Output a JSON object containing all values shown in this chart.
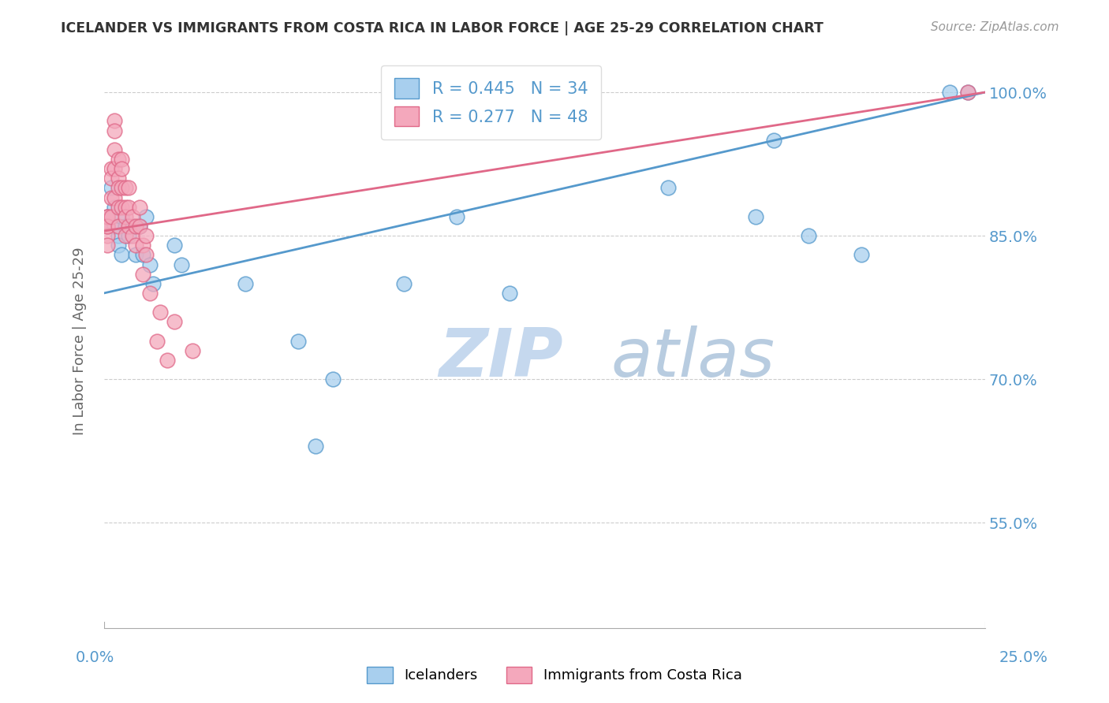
{
  "title": "ICELANDER VS IMMIGRANTS FROM COSTA RICA IN LABOR FORCE | AGE 25-29 CORRELATION CHART",
  "source": "Source: ZipAtlas.com",
  "ylabel": "In Labor Force | Age 25-29",
  "legend_label1": "Icelanders",
  "legend_label2": "Immigrants from Costa Rica",
  "R1": 0.445,
  "N1": 34,
  "R2": 0.277,
  "N2": 48,
  "blue_color": "#A8CFEE",
  "pink_color": "#F4A8BC",
  "blue_edge_color": "#5599CC",
  "pink_edge_color": "#E06888",
  "blue_line_color": "#5599CC",
  "pink_line_color": "#E06888",
  "axis_label_color": "#5599CC",
  "title_color": "#333333",
  "watermark_zip": "ZIP",
  "watermark_atlas": "atlas",
  "watermark_color_zip": "#C8DCF0",
  "watermark_color_atlas": "#C0D8E8",
  "xlim": [
    0.0,
    0.25
  ],
  "ylim": [
    0.44,
    1.04
  ],
  "yticks": [
    0.55,
    0.7,
    0.85,
    1.0
  ],
  "ytick_labels": [
    "55.0%",
    "70.0%",
    "85.0%",
    "100.0%"
  ],
  "blue_x": [
    0.001,
    0.001,
    0.002,
    0.003,
    0.003,
    0.004,
    0.004,
    0.005,
    0.005,
    0.006,
    0.007,
    0.008,
    0.009,
    0.01,
    0.011,
    0.012,
    0.013,
    0.014,
    0.02,
    0.022,
    0.04,
    0.055,
    0.06,
    0.065,
    0.085,
    0.1,
    0.115,
    0.16,
    0.185,
    0.19,
    0.2,
    0.215,
    0.24,
    0.245
  ],
  "blue_y": [
    0.87,
    0.86,
    0.9,
    0.86,
    0.88,
    0.85,
    0.84,
    0.87,
    0.83,
    0.86,
    0.85,
    0.86,
    0.83,
    0.86,
    0.83,
    0.87,
    0.82,
    0.8,
    0.84,
    0.82,
    0.8,
    0.74,
    0.63,
    0.7,
    0.8,
    0.87,
    0.79,
    0.9,
    0.87,
    0.95,
    0.85,
    0.83,
    1.0,
    1.0
  ],
  "pink_x": [
    0.001,
    0.001,
    0.001,
    0.001,
    0.001,
    0.001,
    0.002,
    0.002,
    0.002,
    0.002,
    0.003,
    0.003,
    0.003,
    0.003,
    0.003,
    0.004,
    0.004,
    0.004,
    0.004,
    0.004,
    0.005,
    0.005,
    0.005,
    0.005,
    0.006,
    0.006,
    0.006,
    0.006,
    0.007,
    0.007,
    0.007,
    0.008,
    0.008,
    0.009,
    0.009,
    0.01,
    0.01,
    0.011,
    0.011,
    0.012,
    0.012,
    0.013,
    0.015,
    0.016,
    0.018,
    0.02,
    0.025,
    0.245
  ],
  "pink_y": [
    0.87,
    0.86,
    0.85,
    0.84,
    0.87,
    0.86,
    0.92,
    0.91,
    0.89,
    0.87,
    0.97,
    0.96,
    0.94,
    0.92,
    0.89,
    0.93,
    0.91,
    0.9,
    0.88,
    0.86,
    0.93,
    0.92,
    0.9,
    0.88,
    0.9,
    0.88,
    0.87,
    0.85,
    0.9,
    0.88,
    0.86,
    0.87,
    0.85,
    0.86,
    0.84,
    0.88,
    0.86,
    0.84,
    0.81,
    0.85,
    0.83,
    0.79,
    0.74,
    0.77,
    0.72,
    0.76,
    0.73,
    1.0
  ]
}
